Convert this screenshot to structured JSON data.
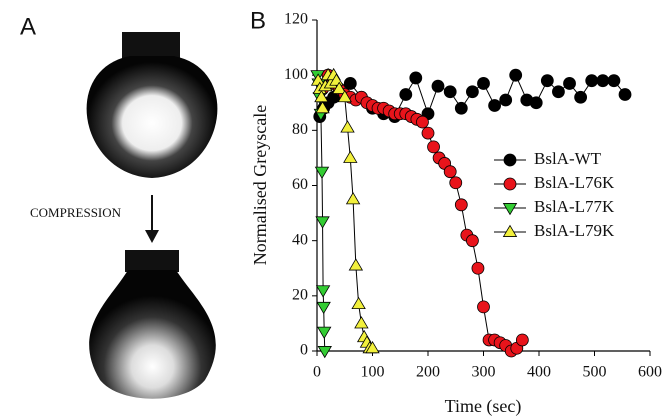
{
  "panel_a": {
    "label": "A",
    "annotation": "COMPRESSION"
  },
  "chart_data": {
    "type": "line",
    "panel_label": "B",
    "x_label": "Time (sec)",
    "y_label": "Normalised Greyscale",
    "xlim": [
      0,
      600
    ],
    "ylim": [
      0,
      120
    ],
    "xticks": [
      0,
      100,
      200,
      300,
      400,
      500,
      600
    ],
    "yticks": [
      0,
      20,
      40,
      60,
      80,
      100,
      120
    ],
    "line_color": "#000000",
    "legend": "right",
    "series": [
      {
        "name": "BslA-WT",
        "color": "#000000",
        "marker": "circle",
        "x": [
          5,
          12,
          20,
          30,
          40,
          60,
          80,
          100,
          120,
          140,
          160,
          178,
          200,
          218,
          240,
          260,
          280,
          300,
          320,
          340,
          358,
          378,
          395,
          415,
          435,
          455,
          475,
          495,
          515,
          535,
          555
        ],
        "values": [
          85,
          88,
          90,
          92,
          95,
          97,
          92,
          88,
          86,
          85,
          93,
          99,
          86,
          96,
          94,
          88,
          94,
          97,
          89,
          91,
          100,
          91,
          90,
          98,
          94,
          97,
          92,
          98,
          98,
          98,
          93
        ]
      },
      {
        "name": "BslA-L76K",
        "color": "#e8141b",
        "marker": "circle",
        "x": [
          10,
          20,
          30,
          40,
          50,
          60,
          70,
          80,
          90,
          100,
          110,
          120,
          130,
          140,
          150,
          160,
          170,
          180,
          190,
          200,
          210,
          220,
          230,
          240,
          250,
          260,
          270,
          280,
          290,
          300,
          310,
          320,
          330,
          340,
          350,
          360,
          370
        ],
        "values": [
          95,
          100,
          97,
          95,
          93,
          92,
          91,
          92,
          90,
          89,
          88,
          88,
          87,
          86,
          86,
          86,
          85,
          84,
          83,
          79,
          74,
          70,
          68,
          65,
          61,
          53,
          42,
          40,
          30,
          16,
          4,
          4,
          3,
          2,
          0,
          1,
          4
        ]
      },
      {
        "name": "BslA-L77K",
        "color": "#33cc33",
        "marker": "triangle-down",
        "x": [
          1,
          3,
          5,
          7,
          9,
          10,
          11,
          12,
          13,
          14
        ],
        "values": [
          100,
          97,
          92,
          86,
          65,
          47,
          22,
          16,
          7,
          0
        ]
      },
      {
        "name": "BslA-L79K",
        "color": "#f2f03c",
        "marker": "triangle-up",
        "x": [
          2,
          5,
          8,
          10,
          15,
          20,
          25,
          30,
          35,
          40,
          50,
          55,
          60,
          65,
          70,
          75,
          80,
          85,
          90,
          95,
          100
        ],
        "values": [
          98,
          95,
          92,
          88,
          96,
          100,
          97,
          100,
          98,
          95,
          92,
          81,
          70,
          55,
          31,
          17,
          10,
          5,
          3,
          1,
          1
        ]
      }
    ]
  }
}
